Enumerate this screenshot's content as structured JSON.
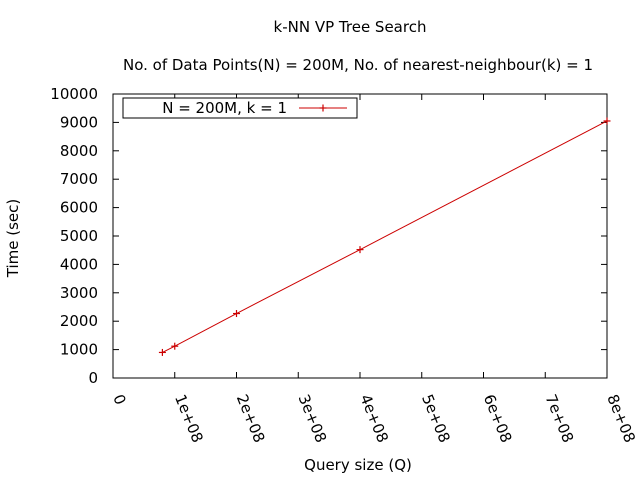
{
  "chart_data": {
    "type": "line",
    "title": "k-NN VP Tree Search",
    "subtitle": "No. of Data Points(N) = 200M,  No. of nearest-neighbour(k) = 1",
    "xlabel": "Query size (Q)",
    "ylabel": "Time (sec)",
    "xlim": [
      0,
      800000000
    ],
    "ylim": [
      0,
      10000
    ],
    "x_ticks": [
      {
        "value": 0,
        "label": "0"
      },
      {
        "value": 100000000,
        "label": "1e+08"
      },
      {
        "value": 200000000,
        "label": "2e+08"
      },
      {
        "value": 300000000,
        "label": "3e+08"
      },
      {
        "value": 400000000,
        "label": "4e+08"
      },
      {
        "value": 500000000,
        "label": "5e+08"
      },
      {
        "value": 600000000,
        "label": "6e+08"
      },
      {
        "value": 700000000,
        "label": "7e+08"
      },
      {
        "value": 800000000,
        "label": "8e+08"
      }
    ],
    "y_ticks": [
      {
        "value": 0,
        "label": "0"
      },
      {
        "value": 1000,
        "label": "1000"
      },
      {
        "value": 2000,
        "label": "2000"
      },
      {
        "value": 3000,
        "label": "3000"
      },
      {
        "value": 4000,
        "label": "4000"
      },
      {
        "value": 5000,
        "label": "5000"
      },
      {
        "value": 6000,
        "label": "6000"
      },
      {
        "value": 7000,
        "label": "7000"
      },
      {
        "value": 8000,
        "label": "8000"
      },
      {
        "value": 9000,
        "label": "9000"
      },
      {
        "value": 10000,
        "label": "10000"
      }
    ],
    "grid": false,
    "legend_position": "top-left",
    "series": [
      {
        "name": "N = 200M, k = 1",
        "color": "#cc0000",
        "marker": "plus",
        "points": [
          {
            "x": 80000000,
            "y": 900
          },
          {
            "x": 100000000,
            "y": 1120
          },
          {
            "x": 200000000,
            "y": 2270
          },
          {
            "x": 400000000,
            "y": 4520
          },
          {
            "x": 800000000,
            "y": 9050
          }
        ]
      }
    ]
  }
}
